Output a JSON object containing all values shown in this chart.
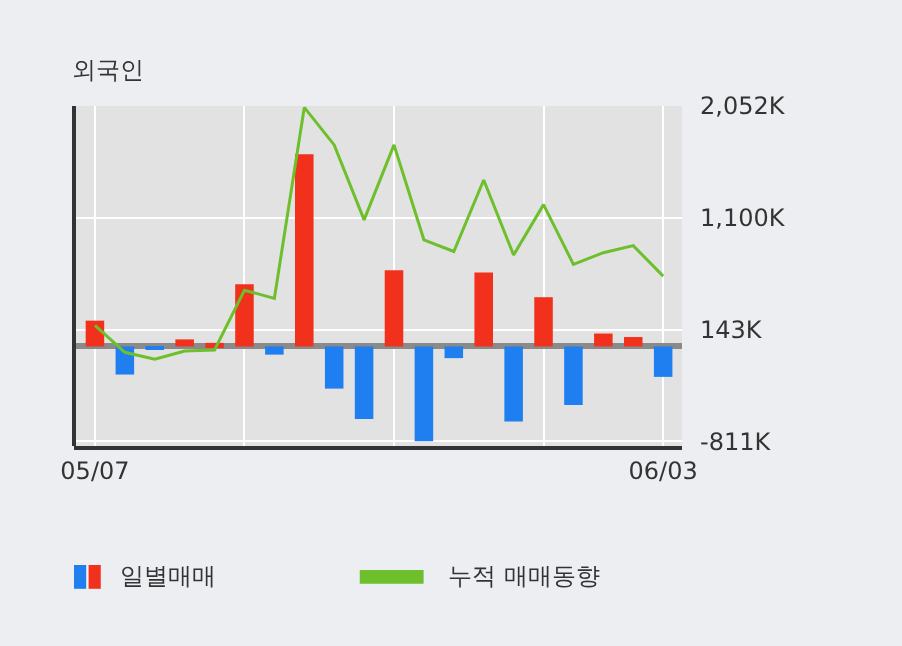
{
  "chart_data": {
    "type": "bar",
    "title": "외국인",
    "categories": [
      "05/07",
      null,
      null,
      null,
      null,
      null,
      null,
      null,
      null,
      null,
      null,
      null,
      null,
      null,
      null,
      null,
      null,
      null,
      null,
      "06/03"
    ],
    "series": [
      {
        "name": "일별매매",
        "colors": [
          "#f2311c",
          "#1f7ff0",
          "#1f7ff0",
          "#f2311c",
          "#f2311c",
          "#f2311c",
          "#1f7ff0",
          "#f2311c",
          "#1f7ff0",
          "#1f7ff0",
          "#f2311c",
          "#1f7ff0",
          "#1f7ff0",
          "#f2311c",
          "#1f7ff0",
          "#f2311c",
          "#1f7ff0",
          "#f2311c",
          "#f2311c",
          "#1f7ff0"
        ],
        "values": [
          220,
          -240,
          -20,
          60,
          30,
          530,
          -70,
          1640,
          -360,
          -620,
          650,
          -810,
          -100,
          630,
          -640,
          420,
          -500,
          110,
          80,
          -260
        ]
      },
      {
        "name": "누적 매매동향",
        "type": "line",
        "color": "#6dbf2c",
        "values": [
          180,
          -50,
          -110,
          -40,
          -30,
          480,
          410,
          2040,
          1720,
          1080,
          1720,
          910,
          810,
          1420,
          780,
          1210,
          700,
          800,
          860,
          600
        ]
      }
    ],
    "ylim": [
      -850,
      2052
    ],
    "yticks": [
      {
        "value": -811,
        "label": "-811K"
      },
      {
        "value": 143,
        "label": "143K"
      },
      {
        "value": 1100,
        "label": "1,100K"
      },
      {
        "value": 2052,
        "label": "2,052K"
      }
    ],
    "grid": true,
    "legend": "bottom"
  }
}
